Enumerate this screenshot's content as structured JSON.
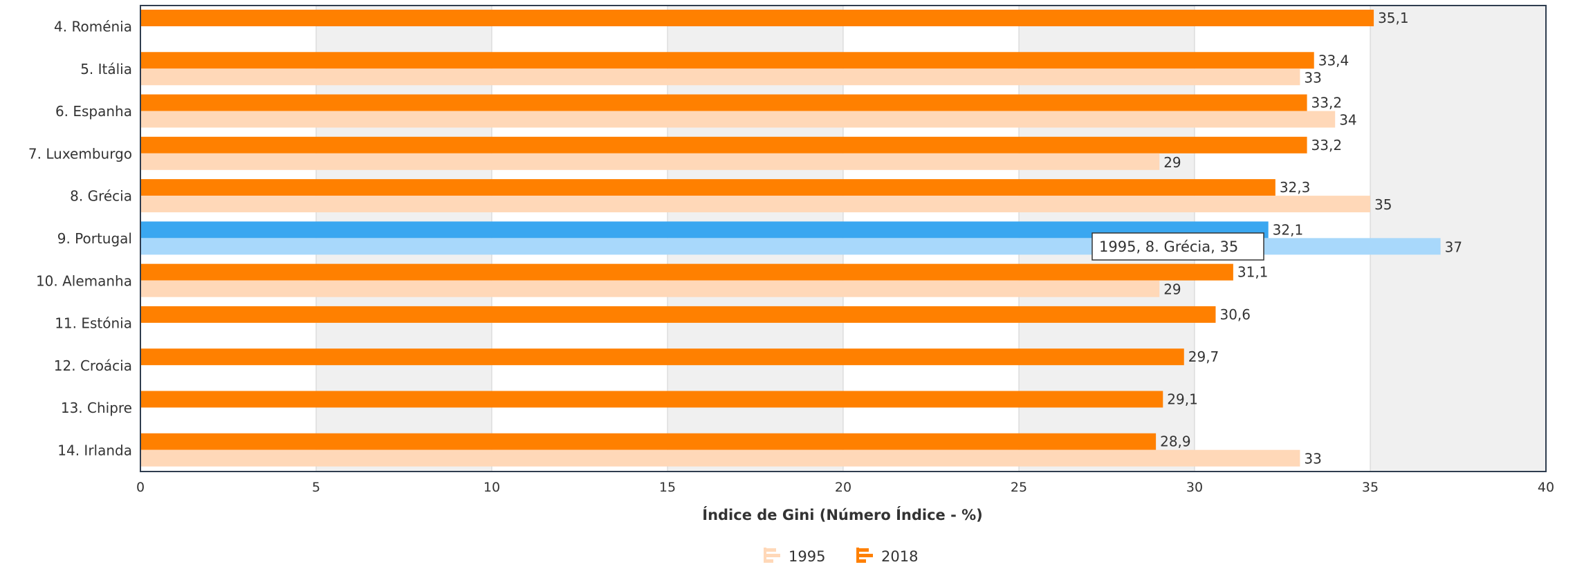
{
  "chart_data": {
    "type": "bar",
    "orientation": "horizontal",
    "categories": [
      "4. Roménia",
      "5. Itália",
      "6. Espanha",
      "7. Luxemburgo",
      "8. Grécia",
      "9. Portugal",
      "10. Alemanha",
      "11. Estónia",
      "12. Croácia",
      "13. Chipre",
      "14. Irlanda"
    ],
    "series": [
      {
        "name": "2018",
        "values": [
          35.1,
          33.4,
          33.2,
          33.2,
          32.3,
          32.1,
          31.1,
          30.6,
          29.7,
          29.1,
          28.9
        ],
        "labels": [
          "35,1",
          "33,4",
          "33,2",
          "33,2",
          "32,3",
          "32,1",
          "31,1",
          "30,6",
          "29,7",
          "29,1",
          "28,9"
        ]
      },
      {
        "name": "1995",
        "values": [
          null,
          33,
          34,
          29,
          35,
          37,
          29,
          null,
          null,
          null,
          33
        ],
        "labels": [
          "",
          "33",
          "34",
          "29",
          "35",
          "37",
          "29",
          "",
          "",
          "",
          "33"
        ]
      }
    ],
    "xlabel": "Índice de Gini (Número Índice - %)",
    "xlim": [
      0,
      40
    ],
    "ticks": [
      "0",
      "5",
      "10",
      "15",
      "20",
      "25",
      "30",
      "35",
      "40"
    ],
    "highlight_category": "9. Portugal",
    "colors": {
      "series_2018": "#ff8000",
      "series_1995": "#ffd8b8",
      "highlight_2018": "#3aa7f0",
      "highlight_1995": "#a8d8fb",
      "band": "#f0f0f0",
      "grid": "#d0d0d0",
      "axis": "#2f3d4f"
    },
    "legend": {
      "position": "bottom",
      "items": [
        "1995",
        "2018"
      ]
    },
    "tooltip": "1995, 8. Grécia, 35"
  }
}
